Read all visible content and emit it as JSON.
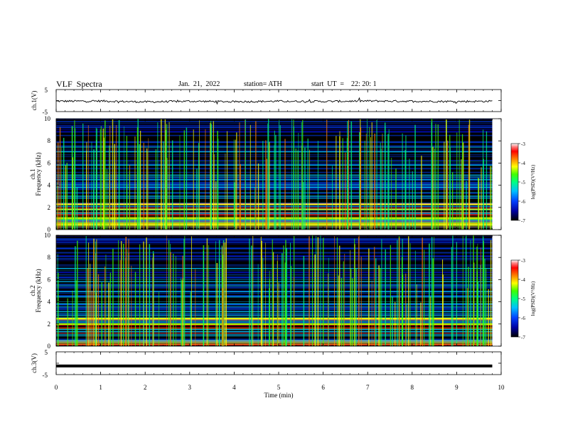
{
  "header": {
    "title": "VLF  Spectra",
    "date": "Jan.  21,  2022",
    "station": "station= ATH",
    "start": "start  UT  =    22: 20: 1"
  },
  "colors": {
    "spectrogram_bg": "#000000",
    "trace": "#000000",
    "colormap": [
      "#000000",
      "#0000a0",
      "#0040ff",
      "#00c0ff",
      "#00ff80",
      "#40ff00",
      "#ffff00",
      "#ff8000",
      "#ff0000",
      "#ff8080",
      "#ffffff"
    ]
  },
  "chart_data": [
    {
      "type": "line",
      "title": "VLF  Spectra",
      "ylabel": "ch.1(V)",
      "ylim": [
        -5,
        5
      ],
      "yticks": [
        "5",
        "-5"
      ],
      "xlim": [
        0,
        10
      ],
      "x": [
        0,
        1,
        2,
        3,
        4,
        5,
        6,
        7,
        8,
        9,
        9.8
      ],
      "values": [
        -0.3,
        -0.2,
        -0.6,
        -0.3,
        -0.5,
        -0.3,
        -0.4,
        -0.2,
        -0.3,
        -0.4,
        -0.3
      ],
      "grid": false
    },
    {
      "type": "heatmap",
      "ylabel": "ch.1\nFrequency (kHz)",
      "ylim": [
        0,
        10
      ],
      "yticks": [
        "0",
        "2",
        "4",
        "6",
        "8",
        "10"
      ],
      "xlim": [
        0,
        10
      ],
      "data_end_min": 9.8,
      "colorbar": {
        "label": "log(PSD)(V²/Hz)",
        "range": [
          -7,
          -3
        ],
        "ticks": [
          "-3",
          "-4",
          "-5",
          "-6",
          "-7"
        ]
      },
      "bands_khz": [
        0.5,
        1.0,
        1.8,
        2.3,
        3.0,
        3.8,
        4.9,
        5.8,
        7.0
      ],
      "bright_bands_khz": [
        0.5,
        1.0,
        2.3
      ]
    },
    {
      "type": "heatmap",
      "ylabel": "ch.2\nFrequency (kHz)",
      "ylim": [
        0,
        10
      ],
      "yticks": [
        "0",
        "2",
        "4",
        "6",
        "8",
        "10"
      ],
      "xlim": [
        0,
        10
      ],
      "data_end_min": 9.8,
      "colorbar": {
        "label": "log(PSD)(V²/Hz)",
        "range": [
          -7,
          -3
        ],
        "ticks": [
          "-3",
          "-4",
          "-5",
          "-6",
          "-7"
        ]
      },
      "bands_khz": [
        0.5,
        1.0,
        1.5,
        2.0,
        2.5,
        3.1,
        3.8,
        4.9,
        5.8,
        7.0
      ],
      "bright_bands_khz": [
        1.9,
        2.0,
        2.5
      ]
    },
    {
      "type": "line",
      "ylabel": "ch.3(V)",
      "xlabel": "Time  (min)",
      "ylim": [
        -5,
        5
      ],
      "yticks": [
        "5",
        "-5"
      ],
      "xlim": [
        0,
        10
      ],
      "xticks": [
        "0",
        "1",
        "2",
        "3",
        "4",
        "5",
        "6",
        "7",
        "8",
        "9",
        "10"
      ],
      "x": [
        0,
        9.8
      ],
      "values": [
        -1.2,
        -1.2
      ],
      "grid": false
    }
  ]
}
